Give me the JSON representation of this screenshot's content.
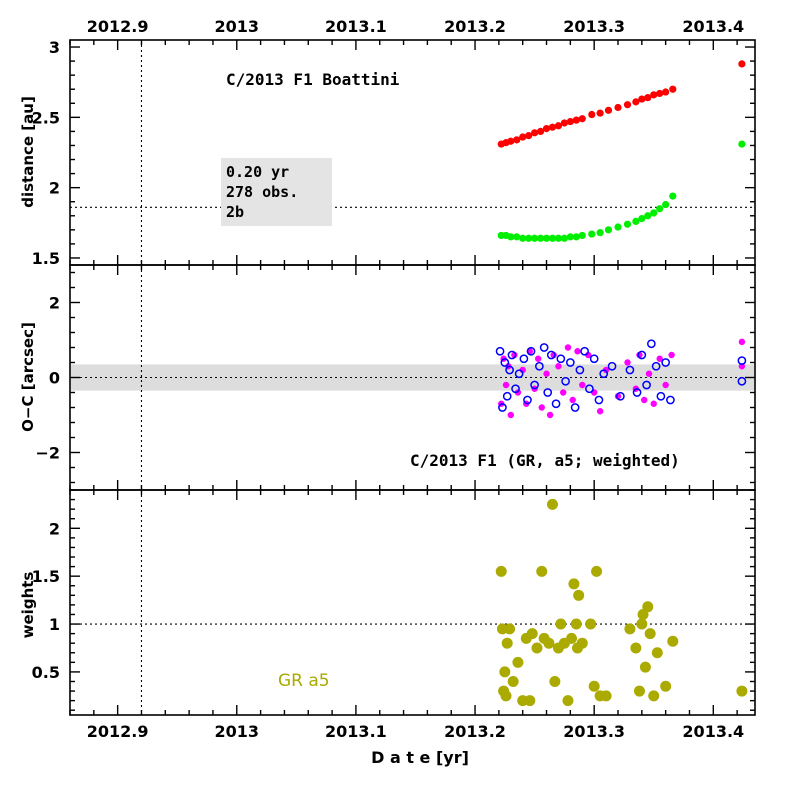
{
  "colors": {
    "helio": "#ff0000",
    "geo": "#00ee00",
    "oc_ra": "#ff00ff",
    "oc_dec": "#0000ff",
    "weights": "#aaaa00",
    "band": "#dddddd",
    "box": "#e4e4e4"
  },
  "chart_data": [
    {
      "type": "scatter",
      "panel": "top",
      "title": "C/2013 F1 Boattini",
      "ylabel": "distance [au]",
      "xlim": [
        2012.86,
        2013.435
      ],
      "ylim": [
        1.45,
        3.05
      ],
      "x_ticks": [
        "2012.9",
        "2013",
        "2013.1",
        "2013.2",
        "2013.3",
        "2013.4"
      ],
      "y_ticks": [
        "1.5",
        "2",
        "2.5",
        "3"
      ],
      "hline": 1.86,
      "vline": 2012.92,
      "info_box": [
        "0.20 yr",
        "278 obs.",
        "2b"
      ],
      "series": [
        {
          "values_x": [
            2013.222,
            2013.226,
            2013.23,
            2013.235,
            2013.24,
            2013.245,
            2013.25,
            2013.255,
            2013.26,
            2013.265,
            2013.27,
            2013.275,
            2013.28,
            2013.285,
            2013.29,
            2013.298,
            2013.305,
            2013.312,
            2013.32,
            2013.328,
            2013.335,
            2013.34,
            2013.345,
            2013.35,
            2013.355,
            2013.36,
            2013.366,
            2013.424
          ],
          "values_y": [
            2.31,
            2.32,
            2.33,
            2.34,
            2.36,
            2.37,
            2.39,
            2.4,
            2.42,
            2.43,
            2.44,
            2.46,
            2.47,
            2.48,
            2.49,
            2.52,
            2.53,
            2.55,
            2.57,
            2.59,
            2.61,
            2.63,
            2.64,
            2.66,
            2.67,
            2.68,
            2.7,
            2.88
          ]
        },
        {
          "values_x": [
            2013.222,
            2013.226,
            2013.23,
            2013.235,
            2013.24,
            2013.245,
            2013.25,
            2013.255,
            2013.26,
            2013.265,
            2013.27,
            2013.275,
            2013.28,
            2013.285,
            2013.29,
            2013.298,
            2013.305,
            2013.312,
            2013.32,
            2013.328,
            2013.335,
            2013.34,
            2013.345,
            2013.35,
            2013.355,
            2013.36,
            2013.366,
            2013.424
          ],
          "values_y": [
            1.66,
            1.66,
            1.65,
            1.65,
            1.64,
            1.64,
            1.64,
            1.64,
            1.64,
            1.64,
            1.64,
            1.64,
            1.65,
            1.65,
            1.66,
            1.67,
            1.68,
            1.7,
            1.72,
            1.74,
            1.76,
            1.78,
            1.8,
            1.82,
            1.85,
            1.88,
            1.94,
            2.31
          ]
        }
      ]
    },
    {
      "type": "scatter",
      "panel": "middle",
      "title": "C/2013 F1 (GR, a5; weighted)",
      "ylabel": "O−C [arcsec]",
      "xlim": [
        2012.86,
        2013.435
      ],
      "ylim": [
        -3,
        3
      ],
      "y_ticks": [
        "−2",
        "0",
        "2"
      ],
      "band": [
        -0.35,
        0.35
      ],
      "hline": 0,
      "vline": 2012.92,
      "series": [
        {
          "values_x": [
            2013.222,
            2013.224,
            2013.226,
            2013.228,
            2013.23,
            2013.233,
            2013.236,
            2013.24,
            2013.243,
            2013.246,
            2013.25,
            2013.253,
            2013.256,
            2013.26,
            2013.263,
            2013.266,
            2013.27,
            2013.274,
            2013.278,
            2013.282,
            2013.286,
            2013.29,
            2013.295,
            2013.3,
            2013.305,
            2013.31,
            2013.32,
            2013.328,
            2013.335,
            2013.338,
            2013.342,
            2013.346,
            2013.35,
            2013.355,
            2013.36,
            2013.365,
            2013.424,
            2013.424
          ],
          "values_y": [
            -0.7,
            0.5,
            -0.2,
            0.3,
            -1.0,
            0.6,
            -0.4,
            0.2,
            -0.7,
            0.7,
            -0.3,
            0.5,
            -0.8,
            0.1,
            -1.0,
            0.6,
            0.3,
            -0.4,
            0.8,
            -0.6,
            0.7,
            -0.2,
            0.6,
            -0.4,
            -0.9,
            0.2,
            -0.5,
            0.4,
            -0.3,
            0.6,
            -0.6,
            0.1,
            -0.7,
            0.5,
            -0.2,
            0.6,
            0.95,
            0.3
          ]
        },
        {
          "values_x": [
            2013.221,
            2013.223,
            2013.225,
            2013.227,
            2013.229,
            2013.231,
            2013.234,
            2013.237,
            2013.241,
            2013.244,
            2013.247,
            2013.25,
            2013.254,
            2013.258,
            2013.261,
            2013.264,
            2013.268,
            2013.272,
            2013.276,
            2013.28,
            2013.284,
            2013.288,
            2013.292,
            2013.296,
            2013.3,
            2013.304,
            2013.308,
            2013.315,
            2013.322,
            2013.33,
            2013.336,
            2013.34,
            2013.344,
            2013.348,
            2013.352,
            2013.356,
            2013.36,
            2013.364,
            2013.424,
            2013.424
          ],
          "values_y": [
            0.7,
            -0.8,
            0.4,
            -0.5,
            0.2,
            0.6,
            -0.3,
            0.1,
            0.5,
            -0.6,
            0.7,
            -0.2,
            0.3,
            0.8,
            -0.4,
            0.6,
            -0.7,
            0.5,
            -0.1,
            0.4,
            -0.8,
            0.2,
            0.7,
            -0.3,
            0.5,
            -0.6,
            0.1,
            0.3,
            -0.5,
            0.2,
            -0.4,
            0.6,
            -0.2,
            0.9,
            0.3,
            -0.5,
            0.4,
            -0.6,
            0.45,
            -0.1
          ]
        }
      ]
    },
    {
      "type": "scatter",
      "panel": "bottom",
      "title": "GR a5",
      "ylabel": "weights",
      "xlabel": "D a t e [yr]",
      "xlim": [
        2012.86,
        2013.435
      ],
      "ylim": [
        0.05,
        2.4
      ],
      "x_ticks": [
        "2012.9",
        "2013",
        "2013.1",
        "2013.2",
        "2013.3",
        "2013.4"
      ],
      "y_ticks": [
        "0.5",
        "1",
        "1.5",
        "2"
      ],
      "hline": 1.0,
      "vline": 2012.92,
      "series": [
        {
          "values_x": [
            2013.222,
            2013.223,
            2013.224,
            2013.225,
            2013.226,
            2013.227,
            2013.229,
            2013.232,
            2013.236,
            2013.24,
            2013.243,
            2013.246,
            2013.248,
            2013.252,
            2013.256,
            2013.258,
            2013.262,
            2013.265,
            2013.267,
            2013.27,
            2013.272,
            2013.275,
            2013.278,
            2013.281,
            2013.283,
            2013.285,
            2013.286,
            2013.287,
            2013.29,
            2013.297,
            2013.3,
            2013.302,
            2013.305,
            2013.31,
            2013.33,
            2013.335,
            2013.338,
            2013.34,
            2013.341,
            2013.343,
            2013.345,
            2013.347,
            2013.35,
            2013.353,
            2013.36,
            2013.366,
            2013.424
          ],
          "values_y": [
            1.55,
            0.95,
            0.3,
            0.5,
            0.25,
            0.8,
            0.95,
            0.4,
            0.6,
            0.2,
            0.85,
            0.2,
            0.9,
            0.75,
            1.55,
            0.85,
            0.8,
            2.25,
            0.4,
            0.75,
            1.0,
            0.8,
            0.2,
            0.85,
            1.42,
            1.0,
            0.75,
            1.3,
            0.8,
            1.0,
            0.35,
            1.55,
            0.25,
            0.25,
            0.95,
            0.75,
            0.3,
            1.0,
            1.1,
            0.55,
            1.18,
            0.9,
            0.25,
            0.7,
            0.35,
            0.82,
            0.3
          ]
        }
      ]
    }
  ]
}
